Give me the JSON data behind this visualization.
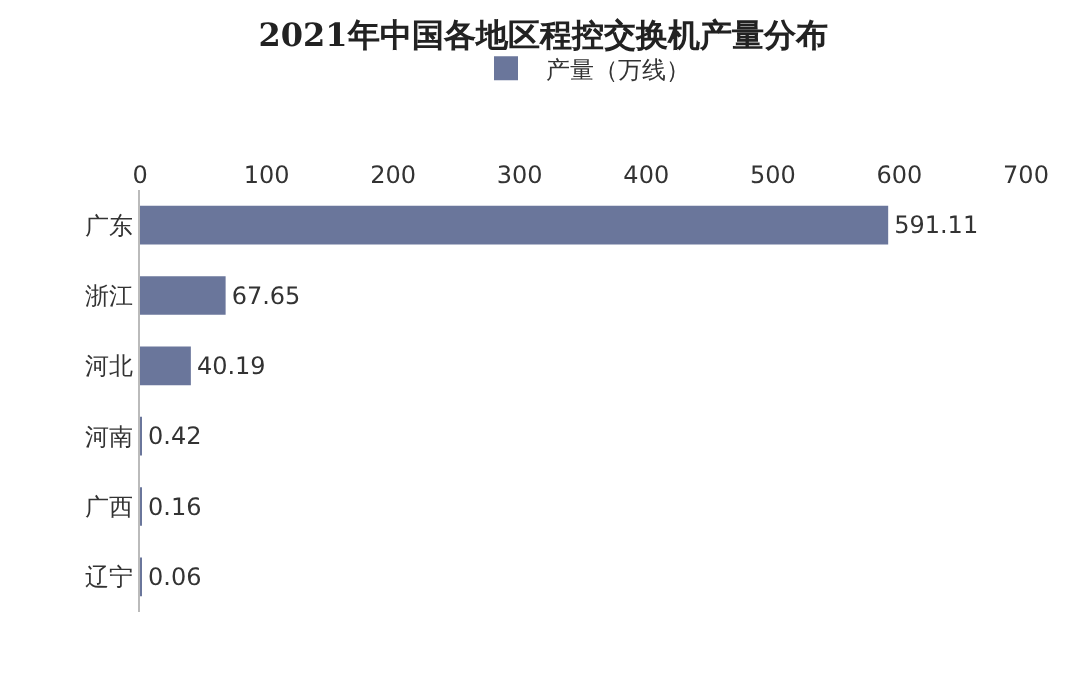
{
  "chart_data": {
    "type": "bar",
    "title": "2021年中国各地区程控交换机产量分布",
    "orientation": "horizontal",
    "categories": [
      "广东",
      "浙江",
      "河北",
      "河南",
      "广西",
      "辽宁"
    ],
    "series": [
      {
        "name": "产量（万线）",
        "color": "#6a769b",
        "values": [
          591.11,
          67.65,
          40.19,
          0.42,
          0.16,
          0.06
        ]
      }
    ],
    "xlim": [
      0,
      700
    ],
    "xticks": [
      0,
      100,
      200,
      300,
      400,
      500,
      600,
      700
    ],
    "data_labels": true,
    "legend": "top",
    "grid": false
  }
}
